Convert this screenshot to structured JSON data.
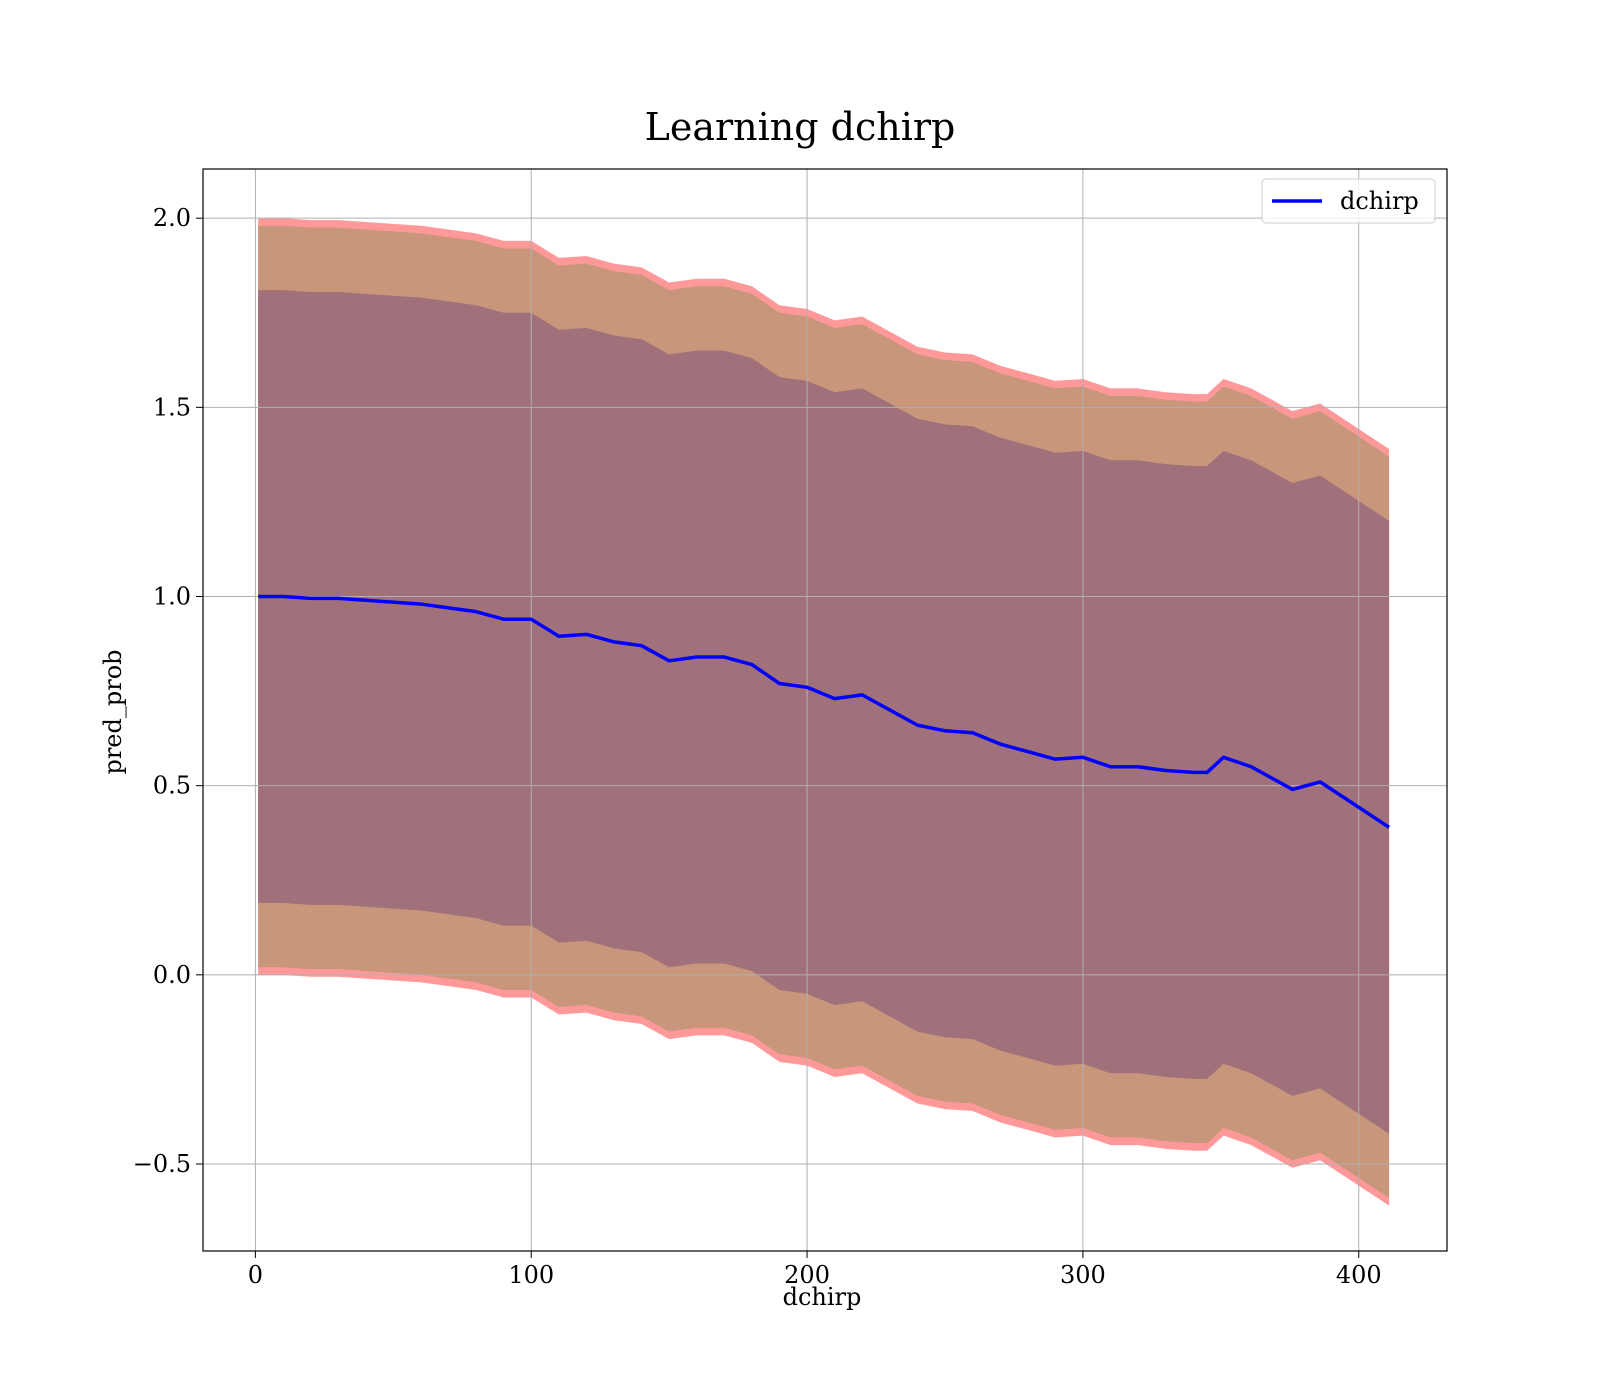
{
  "chart_data": {
    "type": "line",
    "title": "Learning dchirp",
    "xlabel": "dchirp",
    "ylabel": "pred_prob",
    "xlim": [
      -19,
      432
    ],
    "ylim": [
      -0.73,
      2.13
    ],
    "xticks": [
      0,
      100,
      200,
      300,
      400
    ],
    "yticks": [
      -0.5,
      0.0,
      0.5,
      1.0,
      1.5,
      2.0
    ],
    "xtick_labels": [
      "0",
      "100",
      "200",
      "300",
      "400"
    ],
    "ytick_labels": [
      "−0.5",
      "0.0",
      "0.5",
      "1.0",
      "1.5",
      "2.0"
    ],
    "grid": true,
    "legend_position": "top-right",
    "series": [
      {
        "name": "dchirp",
        "color": "#0000ff",
        "x": [
          1,
          10,
          20,
          30,
          40,
          50,
          60,
          70,
          80,
          90,
          100,
          110,
          120,
          130,
          140,
          150,
          160,
          170,
          180,
          190,
          200,
          210,
          220,
          230,
          240,
          250,
          260,
          270,
          280,
          290,
          300,
          310,
          320,
          330,
          340,
          345,
          351,
          361,
          376,
          386,
          411
        ],
        "y": [
          1.0,
          1.0,
          0.995,
          0.995,
          0.99,
          0.985,
          0.98,
          0.97,
          0.96,
          0.94,
          0.94,
          0.895,
          0.9,
          0.88,
          0.87,
          0.83,
          0.84,
          0.84,
          0.82,
          0.77,
          0.76,
          0.73,
          0.74,
          0.7,
          0.66,
          0.645,
          0.64,
          0.61,
          0.59,
          0.57,
          0.575,
          0.55,
          0.55,
          0.54,
          0.535,
          0.535,
          0.575,
          0.55,
          0.49,
          0.51,
          0.39
        ]
      }
    ],
    "bands": [
      {
        "description": "outer",
        "color": "#ff9999",
        "half_width": 1.0
      },
      {
        "description": "middle",
        "color": "#c8967a",
        "half_width": 0.98
      },
      {
        "description": "inner",
        "color": "#a0717a",
        "half_width": 0.81
      }
    ]
  }
}
